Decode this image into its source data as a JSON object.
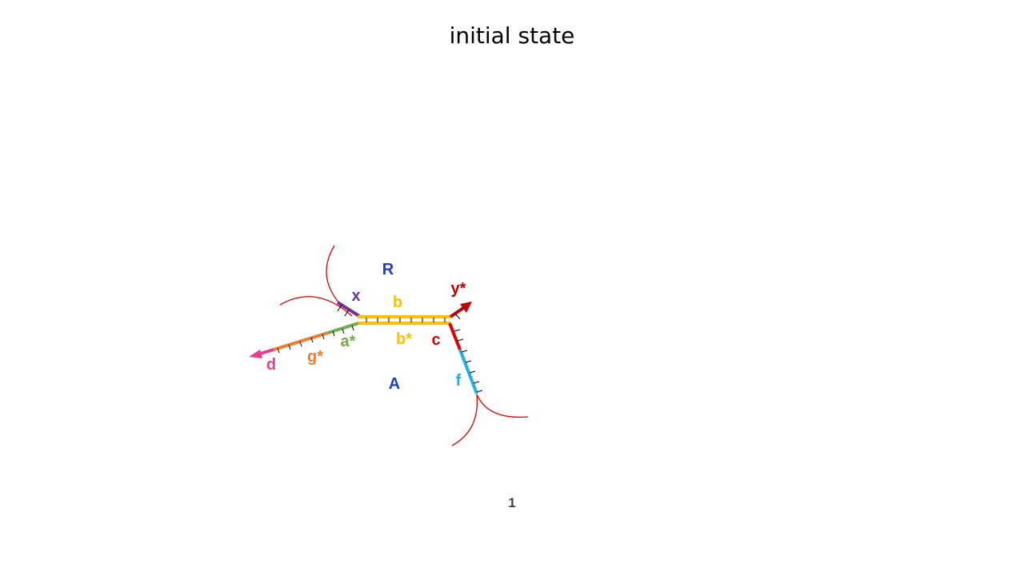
{
  "slide": {
    "title": "initial state",
    "page_number": "1"
  },
  "diagram": {
    "region_labels": {
      "top": "R",
      "bottom": "A"
    },
    "domain_labels": {
      "x": "x",
      "b": "b",
      "y_star": "y*",
      "a_star": "a*",
      "b_star": "b*",
      "c": "c",
      "g_star": "g*",
      "d": "d",
      "f": "f"
    },
    "colors": {
      "region_label": "#1f3fbf",
      "x": "#7030a0",
      "b": "#ffc000",
      "y_star": "#c00000",
      "a_star": "#70ad47",
      "g_star": "#ed7d31",
      "d": "#e83e8c",
      "c": "#e00000",
      "f": "#1fb1e6",
      "boundary": "#e00000",
      "ticks": "#000000"
    }
  }
}
